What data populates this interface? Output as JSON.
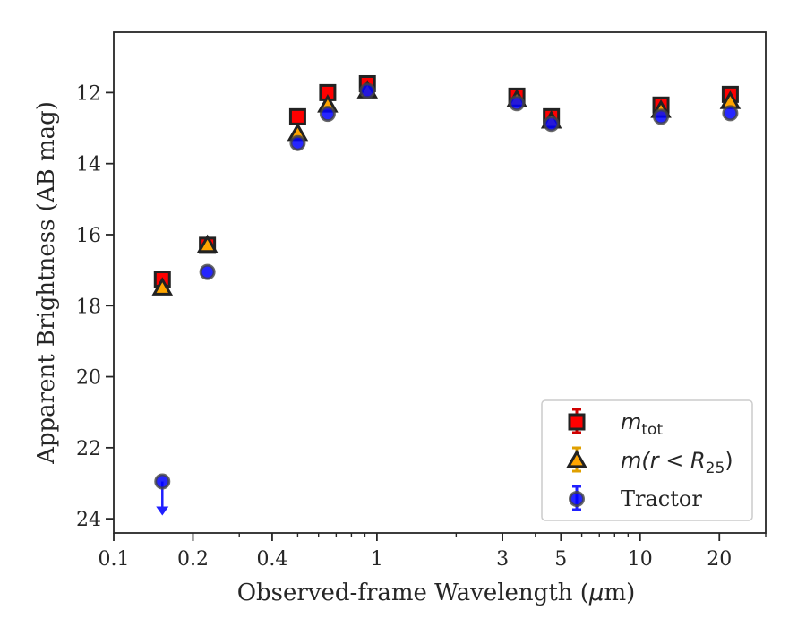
{
  "chart_data": {
    "type": "scatter",
    "xlabel_text": "Observed-frame Wavelength (",
    "xlabel_mu": "μ",
    "xlabel_tail": "m)",
    "ylabel": "Apparent Brightness (AB mag)",
    "xscale": "log",
    "xlim": [
      0.1,
      30
    ],
    "ylim": [
      24.4,
      10.3
    ],
    "y_inverted": true,
    "grid": false,
    "legend_position": "lower-right",
    "x_ticks": [
      {
        "value": 0.1,
        "label": "0.1"
      },
      {
        "value": 0.2,
        "label": "0.2"
      },
      {
        "value": 0.4,
        "label": "0.4"
      },
      {
        "value": 1,
        "label": "1"
      },
      {
        "value": 3,
        "label": "3"
      },
      {
        "value": 5,
        "label": "5"
      },
      {
        "value": 10,
        "label": "10"
      },
      {
        "value": 20,
        "label": "20"
      }
    ],
    "y_ticks": [
      {
        "value": 12,
        "label": "12"
      },
      {
        "value": 14,
        "label": "14"
      },
      {
        "value": 16,
        "label": "16"
      },
      {
        "value": 18,
        "label": "18"
      },
      {
        "value": 20,
        "label": "20"
      },
      {
        "value": 22,
        "label": "22"
      },
      {
        "value": 24,
        "label": "24"
      }
    ],
    "series": [
      {
        "key": "mtot",
        "legend_main": "m",
        "legend_sub": "tot",
        "marker": "square",
        "color": "#ff0000",
        "edge": "#222222",
        "errcolor": "#d00000",
        "points": [
          {
            "x": 0.153,
            "y": 17.25
          },
          {
            "x": 0.227,
            "y": 16.3
          },
          {
            "x": 0.5,
            "y": 12.68
          },
          {
            "x": 0.65,
            "y": 12.0
          },
          {
            "x": 0.92,
            "y": 11.75
          },
          {
            "x": 3.4,
            "y": 12.1
          },
          {
            "x": 4.6,
            "y": 12.68
          },
          {
            "x": 12.0,
            "y": 12.35
          },
          {
            "x": 22.0,
            "y": 12.05
          }
        ]
      },
      {
        "key": "mr25",
        "legend_main": "m(r < R",
        "legend_sub": "25",
        "legend_tail": ")",
        "marker": "triangle",
        "color": "#ffa500",
        "edge": "#222222",
        "errcolor": "#e0a000",
        "points": [
          {
            "x": 0.153,
            "y": 17.5
          },
          {
            "x": 0.227,
            "y": 16.3
          },
          {
            "x": 0.5,
            "y": 13.15
          },
          {
            "x": 0.65,
            "y": 12.35
          },
          {
            "x": 0.92,
            "y": 11.95
          },
          {
            "x": 3.4,
            "y": 12.2
          },
          {
            "x": 4.6,
            "y": 12.8
          },
          {
            "x": 12.0,
            "y": 12.5
          },
          {
            "x": 22.0,
            "y": 12.25
          }
        ]
      },
      {
        "key": "tractor",
        "legend_main": "Tractor",
        "marker": "circle",
        "color": "#0000ff",
        "edge": "#444444",
        "errcolor": "#2020ff",
        "points": [
          {
            "x": 0.153,
            "y": 22.95,
            "upper_limit": true
          },
          {
            "x": 0.227,
            "y": 17.05
          },
          {
            "x": 0.5,
            "y": 13.42
          },
          {
            "x": 0.65,
            "y": 12.6
          },
          {
            "x": 0.92,
            "y": 11.95
          },
          {
            "x": 3.4,
            "y": 12.3
          },
          {
            "x": 4.6,
            "y": 12.88
          },
          {
            "x": 12.0,
            "y": 12.68
          },
          {
            "x": 22.0,
            "y": 12.58
          }
        ]
      }
    ]
  }
}
